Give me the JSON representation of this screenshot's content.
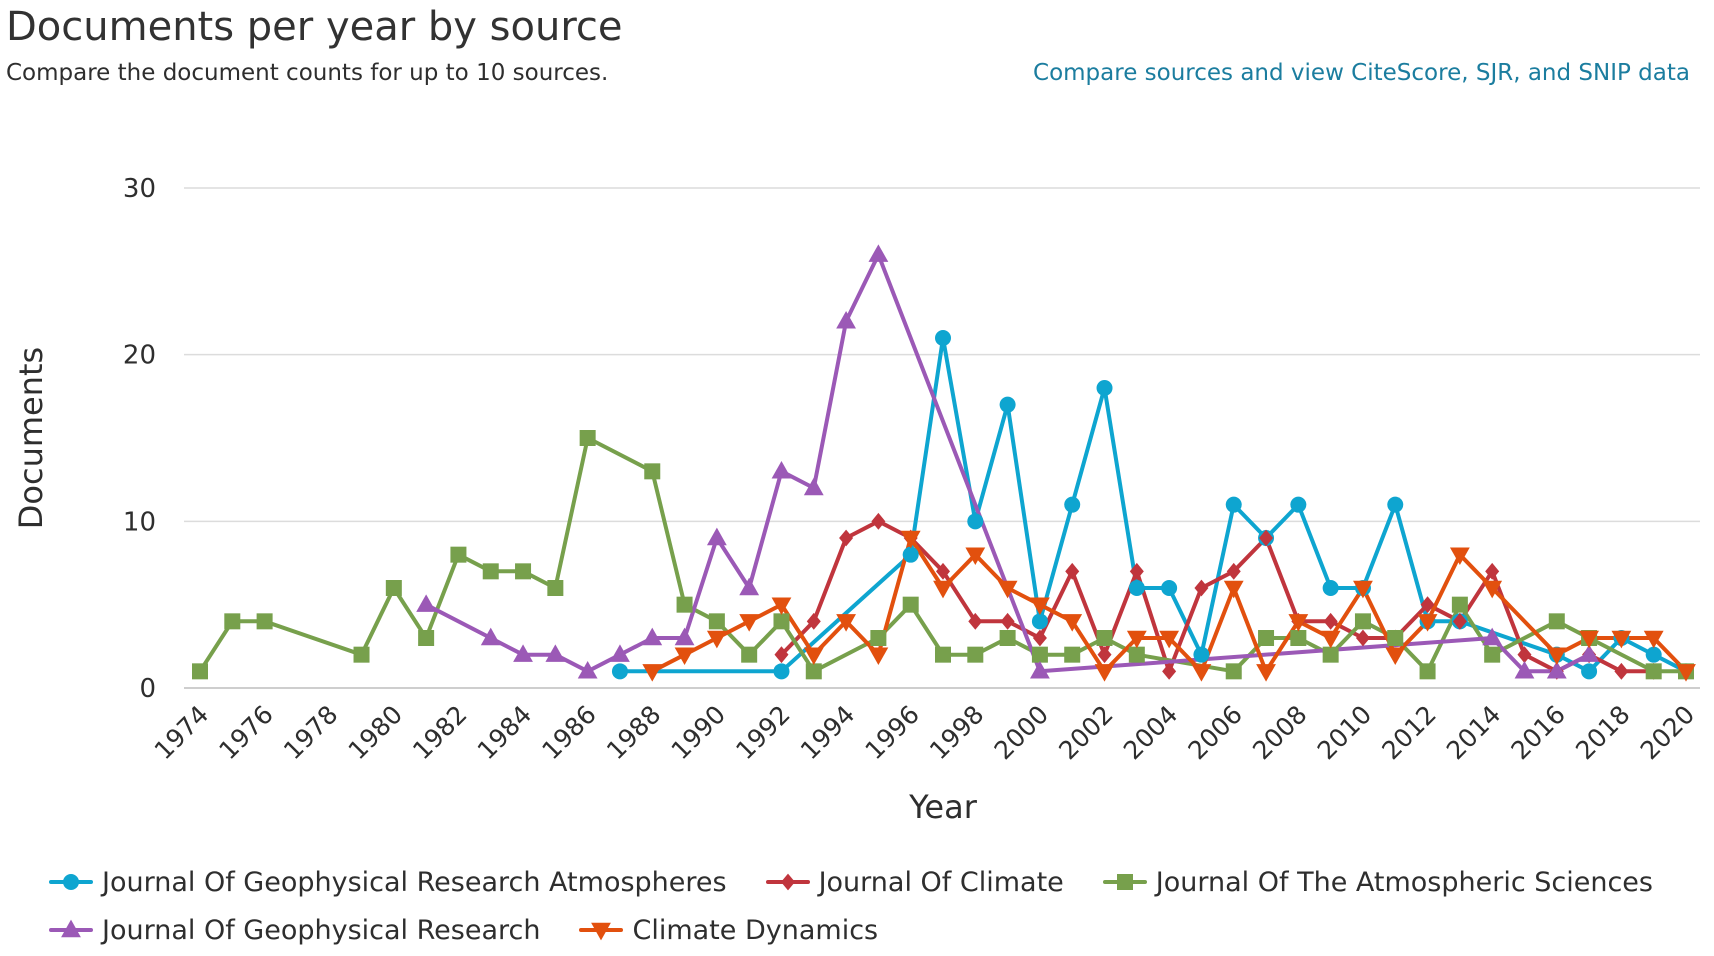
{
  "header": {
    "title": "Documents per year by source",
    "subtitle": "Compare the document counts for up to 10 sources.",
    "compare_link": "Compare sources and view CiteScore, SJR, and SNIP data"
  },
  "chart_data": {
    "type": "line",
    "title": "Documents per year by source",
    "xlabel": "Year",
    "ylabel": "Documents",
    "xlim": [
      1974,
      2020
    ],
    "ylim": [
      0,
      30
    ],
    "yticks": [
      0,
      10,
      20,
      30
    ],
    "xticks": [
      1974,
      1976,
      1978,
      1980,
      1982,
      1984,
      1986,
      1988,
      1990,
      1992,
      1994,
      1996,
      1998,
      2000,
      2002,
      2004,
      2006,
      2008,
      2010,
      2012,
      2014,
      2016,
      2018,
      2020
    ],
    "grid": "horizontal",
    "legend_position": "bottom",
    "series": [
      {
        "name": "Journal Of Geophysical Research Atmospheres",
        "color": "#0ea5d0",
        "marker": "circle",
        "points": [
          [
            1987,
            1
          ],
          [
            1992,
            1
          ],
          [
            1996,
            8
          ],
          [
            1997,
            21
          ],
          [
            1998,
            10
          ],
          [
            1999,
            17
          ],
          [
            2000,
            4
          ],
          [
            2001,
            11
          ],
          [
            2002,
            18
          ],
          [
            2003,
            6
          ],
          [
            2004,
            6
          ],
          [
            2005,
            2
          ],
          [
            2006,
            11
          ],
          [
            2007,
            9
          ],
          [
            2008,
            11
          ],
          [
            2009,
            6
          ],
          [
            2010,
            6
          ],
          [
            2011,
            11
          ],
          [
            2012,
            4
          ],
          [
            2013,
            4
          ],
          [
            2016,
            2
          ],
          [
            2017,
            1
          ],
          [
            2018,
            3
          ],
          [
            2019,
            2
          ],
          [
            2020,
            1
          ]
        ]
      },
      {
        "name": "Journal Of Climate",
        "color": "#c0353d",
        "marker": "diamond",
        "points": [
          [
            1992,
            2
          ],
          [
            1993,
            4
          ],
          [
            1994,
            9
          ],
          [
            1995,
            10
          ],
          [
            1996,
            9
          ],
          [
            1997,
            7
          ],
          [
            1998,
            4
          ],
          [
            1999,
            4
          ],
          [
            2000,
            3
          ],
          [
            2001,
            7
          ],
          [
            2002,
            2
          ],
          [
            2003,
            7
          ],
          [
            2004,
            1
          ],
          [
            2005,
            6
          ],
          [
            2006,
            7
          ],
          [
            2007,
            9
          ],
          [
            2008,
            4
          ],
          [
            2009,
            4
          ],
          [
            2010,
            3
          ],
          [
            2011,
            3
          ],
          [
            2012,
            5
          ],
          [
            2013,
            4
          ],
          [
            2014,
            7
          ],
          [
            2015,
            2
          ],
          [
            2016,
            1
          ],
          [
            2017,
            2
          ],
          [
            2018,
            1
          ],
          [
            2019,
            1
          ]
        ]
      },
      {
        "name": "Journal Of The Atmospheric Sciences",
        "color": "#77a04c",
        "marker": "square",
        "points": [
          [
            1974,
            1
          ],
          [
            1975,
            4
          ],
          [
            1976,
            4
          ],
          [
            1979,
            2
          ],
          [
            1980,
            6
          ],
          [
            1981,
            3
          ],
          [
            1982,
            8
          ],
          [
            1983,
            7
          ],
          [
            1984,
            7
          ],
          [
            1985,
            6
          ],
          [
            1986,
            15
          ],
          [
            1988,
            13
          ],
          [
            1989,
            5
          ],
          [
            1990,
            4
          ],
          [
            1991,
            2
          ],
          [
            1992,
            4
          ],
          [
            1993,
            1
          ],
          [
            1995,
            3
          ],
          [
            1996,
            5
          ],
          [
            1997,
            2
          ],
          [
            1998,
            2
          ],
          [
            1999,
            3
          ],
          [
            2000,
            2
          ],
          [
            2001,
            2
          ],
          [
            2002,
            3
          ],
          [
            2003,
            2
          ],
          [
            2006,
            1
          ],
          [
            2007,
            3
          ],
          [
            2008,
            3
          ],
          [
            2009,
            2
          ],
          [
            2010,
            4
          ],
          [
            2011,
            3
          ],
          [
            2012,
            1
          ],
          [
            2013,
            5
          ],
          [
            2014,
            2
          ],
          [
            2016,
            4
          ],
          [
            2017,
            3
          ],
          [
            2019,
            1
          ],
          [
            2020,
            1
          ]
        ]
      },
      {
        "name": "Journal Of Geophysical Research",
        "color": "#9b59b6",
        "marker": "triangle-up",
        "points": [
          [
            1981,
            5
          ],
          [
            1983,
            3
          ],
          [
            1984,
            2
          ],
          [
            1985,
            2
          ],
          [
            1986,
            1
          ],
          [
            1987,
            2
          ],
          [
            1988,
            3
          ],
          [
            1989,
            3
          ],
          [
            1990,
            9
          ],
          [
            1991,
            6
          ],
          [
            1992,
            13
          ],
          [
            1993,
            12
          ],
          [
            1994,
            22
          ],
          [
            1995,
            26
          ],
          [
            2000,
            1
          ],
          [
            2014,
            3
          ],
          [
            2015,
            1
          ],
          [
            2016,
            1
          ],
          [
            2017,
            2
          ]
        ]
      },
      {
        "name": "Climate Dynamics",
        "color": "#e2500e",
        "marker": "triangle-down",
        "points": [
          [
            1988,
            1
          ],
          [
            1989,
            2
          ],
          [
            1990,
            3
          ],
          [
            1991,
            4
          ],
          [
            1992,
            5
          ],
          [
            1993,
            2
          ],
          [
            1994,
            4
          ],
          [
            1995,
            2
          ],
          [
            1996,
            9
          ],
          [
            1997,
            6
          ],
          [
            1998,
            8
          ],
          [
            1999,
            6
          ],
          [
            2000,
            5
          ],
          [
            2001,
            4
          ],
          [
            2002,
            1
          ],
          [
            2003,
            3
          ],
          [
            2004,
            3
          ],
          [
            2005,
            1
          ],
          [
            2006,
            6
          ],
          [
            2007,
            1
          ],
          [
            2008,
            4
          ],
          [
            2009,
            3
          ],
          [
            2010,
            6
          ],
          [
            2011,
            2
          ],
          [
            2012,
            4
          ],
          [
            2013,
            8
          ],
          [
            2014,
            6
          ],
          [
            2016,
            2
          ],
          [
            2017,
            3
          ],
          [
            2018,
            3
          ],
          [
            2019,
            3
          ],
          [
            2020,
            1
          ]
        ]
      }
    ]
  }
}
